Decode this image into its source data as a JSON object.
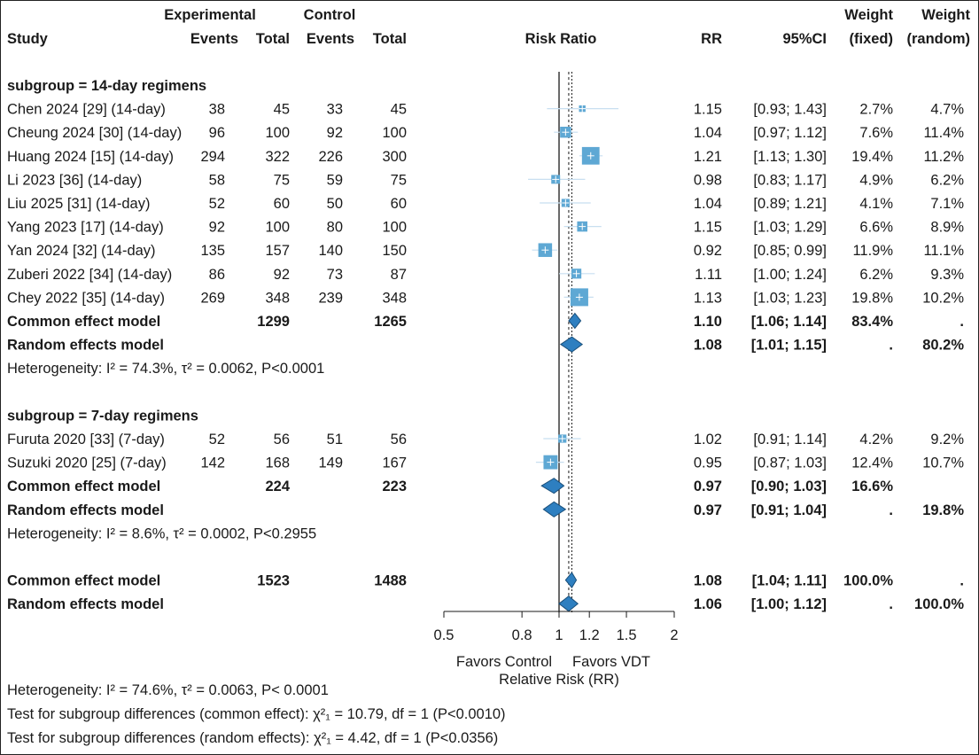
{
  "chart_data": {
    "type": "forest",
    "measure": "Risk Ratio",
    "x_scale": "log",
    "xlim": [
      0.5,
      2
    ],
    "ticks": [
      "0.5",
      "0.8",
      "1",
      "1.2",
      "1.5",
      "2"
    ],
    "tick_values": [
      0.5,
      0.8,
      1,
      1.2,
      1.5,
      2
    ],
    "null_value": 1,
    "random_effect_line": 1.06,
    "common_effect_line": 1.08,
    "colors": {
      "square": "#5ea8d4",
      "diamond": "#2e7fc0",
      "ci": "#c8dff0"
    },
    "headers": {
      "experimental": "Experimental",
      "control": "Control",
      "study": "Study",
      "events_e": "Events",
      "total_e": "Total",
      "events_c": "Events",
      "total_c": "Total",
      "plot": "Risk Ratio",
      "rr": "RR",
      "ci": "95%CI",
      "weight": "Weight",
      "fixed": "(fixed)",
      "weight2": "Weight",
      "random": "(random)"
    },
    "rows": [
      {
        "type": "subgroup",
        "label": "subgroup = 14-day regimens"
      },
      {
        "type": "study",
        "study": "Chen 2024 [29] (14-day)",
        "ee": "38",
        "te": "45",
        "ec": "33",
        "tc": "45",
        "rr": "1.15",
        "ci": "[0.93; 1.43]",
        "wf": "2.7%",
        "wr": "4.7%",
        "est": 1.15,
        "lo": 0.93,
        "hi": 1.43,
        "w": 2.7
      },
      {
        "type": "study",
        "study": "Cheung 2024 [30] (14-day)",
        "ee": "96",
        "te": "100",
        "ec": "92",
        "tc": "100",
        "rr": "1.04",
        "ci": "[0.97; 1.12]",
        "wf": "7.6%",
        "wr": "11.4%",
        "est": 1.04,
        "lo": 0.97,
        "hi": 1.12,
        "w": 7.6
      },
      {
        "type": "study",
        "study": "Huang 2024 [15] (14-day)",
        "ee": "294",
        "te": "322",
        "ec": "226",
        "tc": "300",
        "rr": "1.21",
        "ci": "[1.13; 1.30]",
        "wf": "19.4%",
        "wr": "11.2%",
        "est": 1.21,
        "lo": 1.13,
        "hi": 1.3,
        "w": 19.4
      },
      {
        "type": "study",
        "study": "Li 2023 [36] (14-day)",
        "ee": "58",
        "te": "75",
        "ec": "59",
        "tc": "75",
        "rr": "0.98",
        "ci": "[0.83; 1.17]",
        "wf": "4.9%",
        "wr": "6.2%",
        "est": 0.98,
        "lo": 0.83,
        "hi": 1.17,
        "w": 4.9
      },
      {
        "type": "study",
        "study": "Liu 2025 [31] (14-day)",
        "ee": "52",
        "te": "60",
        "ec": "50",
        "tc": "60",
        "rr": "1.04",
        "ci": "[0.89; 1.21]",
        "wf": "4.1%",
        "wr": "7.1%",
        "est": 1.04,
        "lo": 0.89,
        "hi": 1.21,
        "w": 4.1
      },
      {
        "type": "study",
        "study": "Yang 2023 [17] (14-day)",
        "ee": "92",
        "te": "100",
        "ec": "80",
        "tc": "100",
        "rr": "1.15",
        "ci": "[1.03; 1.29]",
        "wf": "6.6%",
        "wr": "8.9%",
        "est": 1.15,
        "lo": 1.03,
        "hi": 1.29,
        "w": 6.6
      },
      {
        "type": "study",
        "study": "Yan 2024 [32] (14-day)",
        "ee": "135",
        "te": "157",
        "ec": "140",
        "tc": "150",
        "rr": "0.92",
        "ci": "[0.85; 0.99]",
        "wf": "11.9%",
        "wr": "11.1%",
        "est": 0.92,
        "lo": 0.85,
        "hi": 0.99,
        "w": 11.9
      },
      {
        "type": "study",
        "study": "Zuberi 2022 [34] (14-day)",
        "ee": "86",
        "te": "92",
        "ec": "73",
        "tc": "87",
        "rr": "1.11",
        "ci": "[1.00; 1.24]",
        "wf": "6.2%",
        "wr": "9.3%",
        "est": 1.11,
        "lo": 1.0,
        "hi": 1.24,
        "w": 6.2
      },
      {
        "type": "study",
        "study": "Chey 2022 [35] (14-day)",
        "ee": "269",
        "te": "348",
        "ec": "239",
        "tc": "348",
        "rr": "1.13",
        "ci": "[1.03; 1.23]",
        "wf": "19.8%",
        "wr": "10.2%",
        "est": 1.13,
        "lo": 1.03,
        "hi": 1.23,
        "w": 19.8
      },
      {
        "type": "pooled",
        "study": "Common effect model",
        "te": "1299",
        "tc": "1265",
        "rr": "1.10",
        "ci": "[1.06; 1.14]",
        "wf": "83.4%",
        "wr": ".",
        "est": 1.1,
        "lo": 1.06,
        "hi": 1.14
      },
      {
        "type": "pooled",
        "study": "Random effects model",
        "rr": "1.08",
        "ci": "[1.01; 1.15]",
        "wf": ".",
        "wr": "80.2%",
        "est": 1.08,
        "lo": 1.01,
        "hi": 1.15
      },
      {
        "type": "het",
        "label": "Heterogeneity: I² = 74.3%, τ² = 0.0062, P<0.0001"
      },
      {
        "type": "blank"
      },
      {
        "type": "subgroup",
        "label": "subgroup = 7-day regimens"
      },
      {
        "type": "study",
        "study": "Furuta 2020 [33] (7-day)",
        "ee": "52",
        "te": "56",
        "ec": "51",
        "tc": "56",
        "rr": "1.02",
        "ci": "[0.91; 1.14]",
        "wf": "4.2%",
        "wr": "9.2%",
        "est": 1.02,
        "lo": 0.91,
        "hi": 1.14,
        "w": 4.2
      },
      {
        "type": "study",
        "study": "Suzuki 2020 [25] (7-day)",
        "ee": "142",
        "te": "168",
        "ec": "149",
        "tc": "167",
        "rr": "0.95",
        "ci": "[0.87; 1.03]",
        "wf": "12.4%",
        "wr": "10.7%",
        "est": 0.95,
        "lo": 0.87,
        "hi": 1.03,
        "w": 12.4
      },
      {
        "type": "pooled",
        "study": "Common effect model",
        "te": "224",
        "tc": "223",
        "rr": "0.97",
        "ci": "[0.90; 1.03]",
        "wf": "16.6%",
        "wr": "",
        "est": 0.97,
        "lo": 0.9,
        "hi": 1.03
      },
      {
        "type": "pooled",
        "study": "Random effects model",
        "rr": "0.97",
        "ci": "[0.91; 1.04]",
        "wf": ".",
        "wr": "19.8%",
        "est": 0.97,
        "lo": 0.91,
        "hi": 1.04
      },
      {
        "type": "het",
        "label": "Heterogeneity: I² = 8.6%, τ² = 0.0002, P<0.2955"
      },
      {
        "type": "blank"
      },
      {
        "type": "pooled",
        "study": "Common effect model",
        "te": "1523",
        "tc": "1488",
        "rr": "1.08",
        "ci": "[1.04; 1.11]",
        "wf": "100.0%",
        "wr": ".",
        "est": 1.08,
        "lo": 1.04,
        "hi": 1.11
      },
      {
        "type": "pooled",
        "study": "Random effects model",
        "rr": "1.06",
        "ci": "[1.00; 1.12]",
        "wf": ".",
        "wr": "100.0%",
        "est": 1.06,
        "lo": 1.0,
        "hi": 1.12
      }
    ],
    "favors_left": "Favors Control",
    "favors_right": "Favors VDT",
    "xlabel": "Relative Risk (RR)",
    "footer": [
      "Heterogeneity: I² = 74.6%, τ² = 0.0063, P< 0.0001",
      "Test for subgroup differences (common effect): χ²₁ = 10.79, df = 1 (P<0.0010)",
      "Test for subgroup differences (random effects): χ²₁ = 4.42, df = 1 (P<0.0356)"
    ]
  }
}
